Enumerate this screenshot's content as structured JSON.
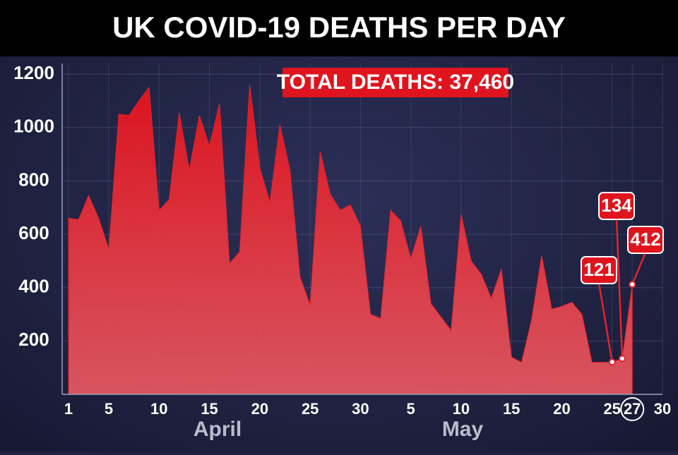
{
  "chart_data": {
    "type": "area",
    "title": "UK COVID-19 DEATHS PER DAY",
    "annotations": [
      "TOTAL DEATHS: 37,460",
      "April",
      "May"
    ],
    "x": [
      0,
      1,
      2,
      3,
      4,
      5,
      6,
      7,
      8,
      9,
      10,
      11,
      12,
      13,
      14,
      15,
      16,
      17,
      18,
      19,
      20,
      21,
      22,
      23,
      24,
      25,
      26,
      27,
      28,
      29,
      30,
      31,
      32,
      33,
      34,
      35,
      36,
      37,
      38,
      39,
      40,
      41,
      42,
      43,
      44,
      45,
      46,
      47,
      48,
      49,
      50,
      51,
      52,
      53,
      54,
      55,
      56
    ],
    "series": [
      {
        "name": "Deaths",
        "color": "#e3232c",
        "values": [
          660,
          655,
          745,
          660,
          545,
          1050,
          1045,
          1100,
          1150,
          690,
          730,
          1055,
          840,
          1045,
          930,
          1090,
          490,
          535,
          1160,
          850,
          720,
          1010,
          840,
          440,
          335,
          910,
          750,
          690,
          710,
          630,
          300,
          285,
          690,
          650,
          510,
          630,
          340,
          290,
          240,
          675,
          500,
          450,
          360,
          470,
          140,
          120,
          280,
          520,
          320,
          330,
          345,
          300,
          120,
          120,
          121,
          134,
          412
        ]
      }
    ],
    "xlim": [
      0,
      59
    ],
    "xticks": [
      {
        "value": 0,
        "label": "1"
      },
      {
        "value": 4,
        "label": "5"
      },
      {
        "value": 9,
        "label": "10"
      },
      {
        "value": 14,
        "label": "15"
      },
      {
        "value": 19,
        "label": "20"
      },
      {
        "value": 24,
        "label": "25"
      },
      {
        "value": 29,
        "label": "30"
      },
      {
        "value": 34,
        "label": "5"
      },
      {
        "value": 39,
        "label": "10"
      },
      {
        "value": 44,
        "label": "15"
      },
      {
        "value": 49,
        "label": "20"
      },
      {
        "value": 54,
        "label": "25"
      },
      {
        "value": 56,
        "label": "27"
      },
      {
        "value": 59,
        "label": "30"
      }
    ],
    "ylim": [
      0,
      1240
    ],
    "yticks": [
      200,
      400,
      600,
      800,
      1000,
      1200
    ],
    "grid": true
  }
}
